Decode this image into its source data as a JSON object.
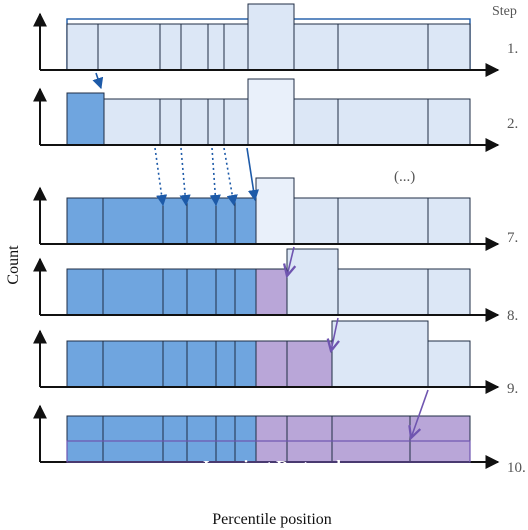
{
  "title": "Step",
  "axes": {
    "y_label": "Count",
    "x_label": "Percentile position"
  },
  "ellipsis_label": "(...)",
  "center_label": "Invariant Restored",
  "colors": {
    "light_fill": "#dce7f6",
    "pale_fill": "#e9f0fa",
    "sorted_fill": "#6fa5df",
    "restored_fill": "#b9a6d8",
    "edge": "#1f2d44",
    "blue_arrow": "#1d5aa8",
    "purple_arrow": "#6f55b0"
  },
  "rows": [
    {
      "step": "1.",
      "bins": [
        "light",
        "light",
        "light",
        "light",
        "light",
        "light",
        "light",
        "light",
        "light"
      ],
      "highlight": "light",
      "tall": [
        5
      ]
    },
    {
      "step": "2.",
      "bins": [
        "sorted",
        "light",
        "light",
        "light",
        "light",
        "light",
        "light",
        "light",
        "light"
      ],
      "highlight": "pale",
      "tall": [
        0,
        6
      ]
    },
    {
      "step": "7.",
      "bins": [
        "sorted",
        "sorted",
        "sorted",
        "sorted",
        "sorted",
        "sorted",
        "pale",
        "light",
        "light",
        "light"
      ],
      "highlight": "pale",
      "tall": [
        6,
        7
      ]
    },
    {
      "step": "8.",
      "bins": [
        "sorted",
        "sorted",
        "sorted",
        "sorted",
        "sorted",
        "sorted",
        "restored",
        "light",
        "light",
        "light"
      ],
      "highlight": "light",
      "tall": [
        7
      ]
    },
    {
      "step": "9.",
      "bins": [
        "sorted",
        "sorted",
        "sorted",
        "sorted",
        "sorted",
        "sorted",
        "restored",
        "restored",
        "light",
        "light"
      ],
      "highlight": "light",
      "tall": [
        8
      ]
    },
    {
      "step": "10.",
      "bins": [
        "sorted",
        "sorted",
        "sorted",
        "sorted",
        "sorted",
        "sorted",
        "restored",
        "restored",
        "restored",
        "restored"
      ],
      "highlight": "none",
      "tall": []
    }
  ]
}
